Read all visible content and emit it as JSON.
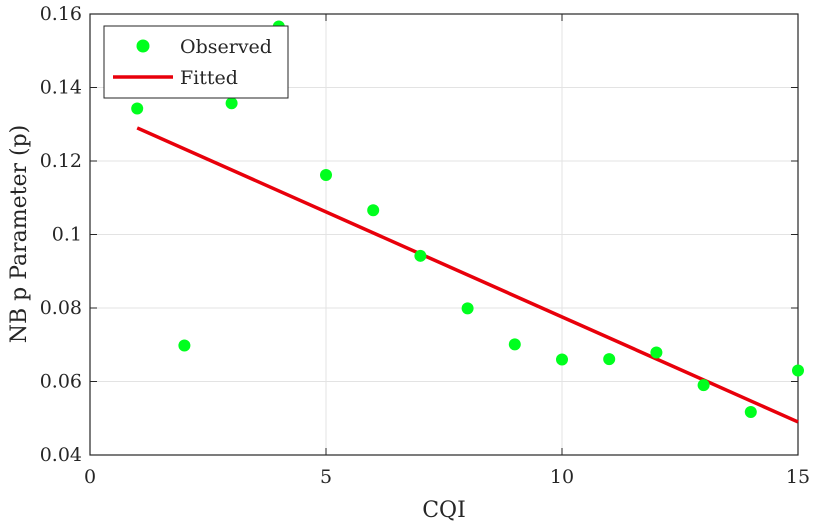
{
  "chart_data": {
    "type": "scatter",
    "xlabel": "CQI",
    "ylabel": "NB p Parameter (p)",
    "xlim": [
      0,
      15
    ],
    "ylim": [
      0.04,
      0.16
    ],
    "grid": true,
    "legend_position": "top-left",
    "x_ticks": [
      0,
      5,
      10,
      15
    ],
    "x_tick_labels": [
      "0",
      "5",
      "10",
      "15"
    ],
    "y_ticks": [
      0.04,
      0.06,
      0.08,
      0.1,
      0.12,
      0.14,
      0.16
    ],
    "y_tick_labels": [
      "0.04",
      "0.06",
      "0.08",
      "0.1",
      "0.12",
      "0.14",
      "0.16"
    ],
    "series": [
      {
        "name": "Observed",
        "kind": "scatter",
        "color": "#00ff1e",
        "x": [
          1,
          2,
          3,
          4,
          5,
          6,
          7,
          8,
          9,
          10,
          11,
          12,
          13,
          14,
          15
        ],
        "y": [
          0.1343,
          0.0698,
          0.1357,
          0.1566,
          0.1162,
          0.1066,
          0.0942,
          0.0799,
          0.0701,
          0.066,
          0.0661,
          0.0679,
          0.059,
          0.0517,
          0.063
        ]
      },
      {
        "name": "Fitted",
        "kind": "line",
        "color": "#e8000b",
        "x": [
          1,
          15
        ],
        "y": [
          0.129,
          0.049
        ]
      }
    ]
  }
}
